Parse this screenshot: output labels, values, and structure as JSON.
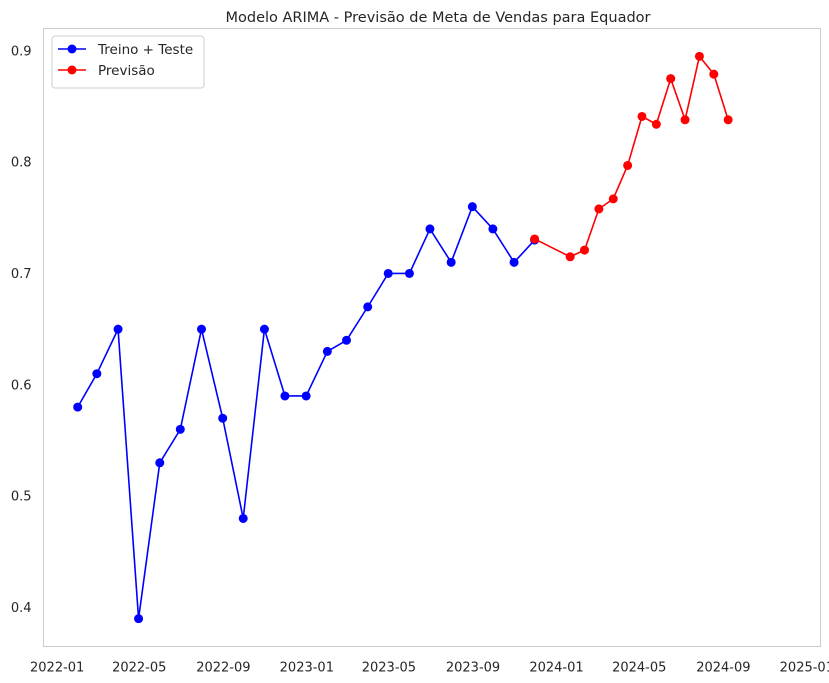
{
  "chart_data": {
    "type": "line",
    "title": "Modelo ARIMA - Previsão de Meta de Vendas para Equador",
    "xlabel": "",
    "ylabel": "",
    "xlim": [
      "2021-12-12",
      "2025-01-21"
    ],
    "ylim": [
      0.365,
      0.92
    ],
    "grid": false,
    "legend_position": "top-left",
    "x_ticks": [
      "2022-01",
      "2022-05",
      "2022-09",
      "2023-01",
      "2023-05",
      "2023-09",
      "2024-01",
      "2024-05",
      "2024-09",
      "2025-01"
    ],
    "y_ticks": [
      0.4,
      0.5,
      0.6,
      0.7,
      0.8,
      0.9
    ],
    "series": [
      {
        "name": "Treino + Teste",
        "color": "#0000ff",
        "marker": "circle",
        "points": [
          {
            "x": "2022-01-31",
            "y": 0.58
          },
          {
            "x": "2022-02-28",
            "y": 0.61
          },
          {
            "x": "2022-03-31",
            "y": 0.65
          },
          {
            "x": "2022-04-30",
            "y": 0.39
          },
          {
            "x": "2022-05-31",
            "y": 0.53
          },
          {
            "x": "2022-06-30",
            "y": 0.56
          },
          {
            "x": "2022-07-31",
            "y": 0.65
          },
          {
            "x": "2022-08-31",
            "y": 0.57
          },
          {
            "x": "2022-09-30",
            "y": 0.48
          },
          {
            "x": "2022-10-31",
            "y": 0.65
          },
          {
            "x": "2022-11-30",
            "y": 0.59
          },
          {
            "x": "2022-12-31",
            "y": 0.59
          },
          {
            "x": "2023-01-31",
            "y": 0.63
          },
          {
            "x": "2023-02-28",
            "y": 0.64
          },
          {
            "x": "2023-03-31",
            "y": 0.67
          },
          {
            "x": "2023-04-30",
            "y": 0.7
          },
          {
            "x": "2023-05-31",
            "y": 0.7
          },
          {
            "x": "2023-06-30",
            "y": 0.74
          },
          {
            "x": "2023-07-31",
            "y": 0.71
          },
          {
            "x": "2023-08-31",
            "y": 0.76
          },
          {
            "x": "2023-09-30",
            "y": 0.74
          },
          {
            "x": "2023-10-31",
            "y": 0.71
          },
          {
            "x": "2023-11-30",
            "y": 0.73
          }
        ]
      },
      {
        "name": "Previsão",
        "color": "#ff0000",
        "marker": "circle",
        "points": [
          {
            "x": "2023-11-30",
            "y": 0.731
          },
          {
            "x": "2024-01-21",
            "y": 0.715
          },
          {
            "x": "2024-02-11",
            "y": 0.721
          },
          {
            "x": "2024-03-03",
            "y": 0.758
          },
          {
            "x": "2024-03-24",
            "y": 0.767
          },
          {
            "x": "2024-04-14",
            "y": 0.797
          },
          {
            "x": "2024-05-05",
            "y": 0.841
          },
          {
            "x": "2024-05-26",
            "y": 0.834
          },
          {
            "x": "2024-06-16",
            "y": 0.875
          },
          {
            "x": "2024-07-07",
            "y": 0.838
          },
          {
            "x": "2024-07-28",
            "y": 0.895
          },
          {
            "x": "2024-08-18",
            "y": 0.879
          },
          {
            "x": "2024-09-08",
            "y": 0.838
          }
        ]
      }
    ]
  }
}
